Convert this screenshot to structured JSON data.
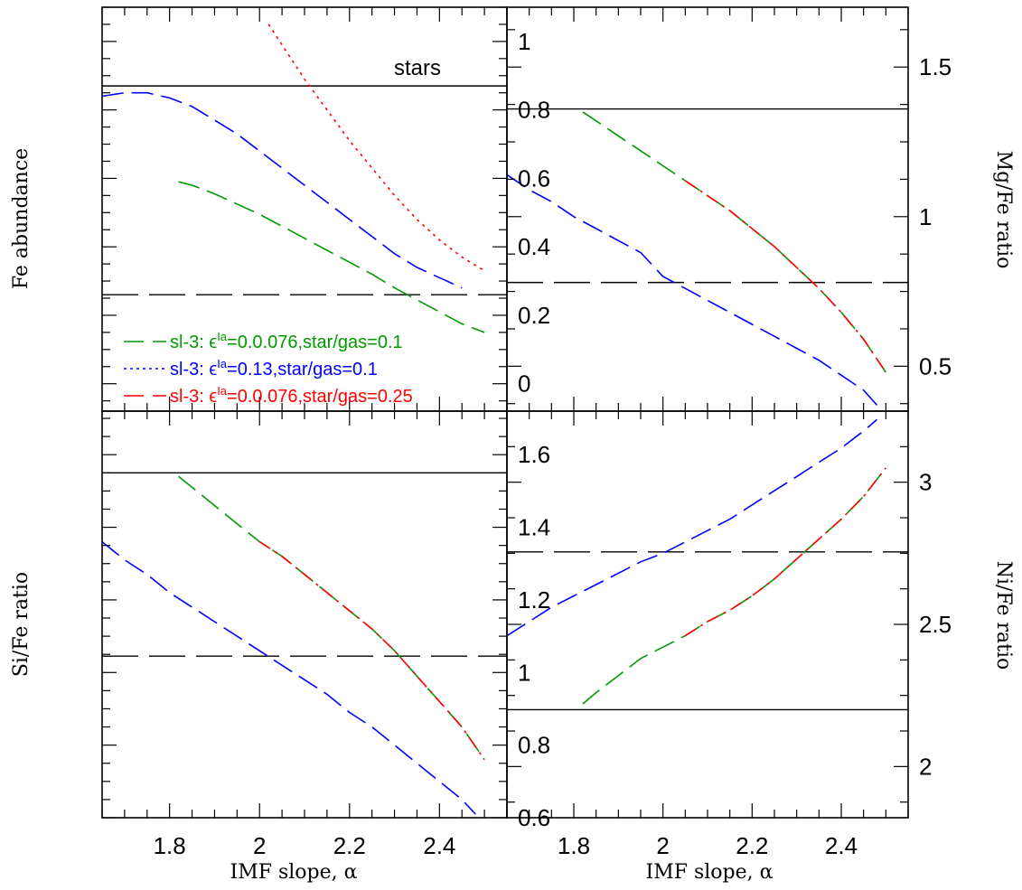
{
  "chart_data": {
    "type": "line",
    "x_tick_labels": [
      "1.8",
      "2",
      "2.2",
      "2.4"
    ],
    "xlabel": "IMF slope, α",
    "xlim": [
      1.65,
      2.55
    ],
    "colors": {
      "green": "#009900",
      "blue": "#0000ff",
      "red": "#ff0000",
      "black": "#000000"
    },
    "legend": [
      {
        "style": "green-dash",
        "text": "sl-3: ϵ",
        "sup": "Ia",
        "rest": "=0.0.076,star/gas=0.1"
      },
      {
        "style": "blue-dot",
        "text": "sl-3: ϵ",
        "sup": "Ia",
        "rest": "=0.13,star/gas=0.1"
      },
      {
        "style": "red-dash",
        "text": "sl-3: ϵ",
        "sup": "Ia",
        "rest": "=0.0.076,star/gas=0.25"
      }
    ],
    "panels": [
      {
        "id": "fe",
        "ylabel": "Fe abundance",
        "ylim": [
          -0.08,
          1.1
        ],
        "yticks": [
          0,
          0.2,
          0.4,
          0.6,
          0.8,
          1
        ],
        "ytick_labels": [
          "0",
          "0.2",
          "0.4",
          "0.6",
          "0.8",
          "1"
        ],
        "annotation": "stars",
        "hlines": [
          {
            "y": 0.87,
            "style": "solid"
          },
          {
            "y": 0.26,
            "style": "longdash"
          }
        ],
        "series": [
          {
            "color": "blue",
            "style": "dash",
            "points": [
              [
                1.65,
                0.84
              ],
              [
                1.7,
                0.85
              ],
              [
                1.75,
                0.85
              ],
              [
                1.8,
                0.835
              ],
              [
                1.85,
                0.81
              ],
              [
                1.9,
                0.77
              ],
              [
                1.95,
                0.73
              ],
              [
                2.0,
                0.68
              ],
              [
                2.05,
                0.63
              ],
              [
                2.1,
                0.58
              ],
              [
                2.15,
                0.53
              ],
              [
                2.2,
                0.48
              ],
              [
                2.25,
                0.43
              ],
              [
                2.3,
                0.38
              ],
              [
                2.35,
                0.34
              ],
              [
                2.4,
                0.31
              ],
              [
                2.45,
                0.28
              ]
            ]
          },
          {
            "color": "green",
            "style": "dash",
            "points": [
              [
                1.82,
                0.59
              ],
              [
                1.85,
                0.58
              ],
              [
                1.9,
                0.555
              ],
              [
                1.95,
                0.525
              ],
              [
                2.0,
                0.495
              ],
              [
                2.05,
                0.46
              ],
              [
                2.1,
                0.425
              ],
              [
                2.15,
                0.39
              ],
              [
                2.2,
                0.355
              ],
              [
                2.25,
                0.32
              ],
              [
                2.3,
                0.28
              ],
              [
                2.35,
                0.245
              ],
              [
                2.4,
                0.21
              ],
              [
                2.45,
                0.175
              ],
              [
                2.5,
                0.15
              ]
            ]
          },
          {
            "color": "red",
            "style": "dot",
            "points": [
              [
                2.02,
                1.05
              ],
              [
                2.05,
                0.99
              ],
              [
                2.1,
                0.89
              ],
              [
                2.15,
                0.8
              ],
              [
                2.2,
                0.71
              ],
              [
                2.25,
                0.63
              ],
              [
                2.3,
                0.55
              ],
              [
                2.35,
                0.48
              ],
              [
                2.4,
                0.42
              ],
              [
                2.45,
                0.37
              ],
              [
                2.5,
                0.33
              ]
            ]
          }
        ]
      },
      {
        "id": "mg",
        "ylabel": "Mg/Fe ratio",
        "ylim": [
          0.35,
          1.7
        ],
        "yticks": [
          0.5,
          1,
          1.5
        ],
        "ytick_labels": [
          "0.5",
          "1",
          "1.5"
        ],
        "hlines": [
          {
            "y": 1.36,
            "style": "solid"
          },
          {
            "y": 0.78,
            "style": "longdash"
          }
        ],
        "series": [
          {
            "color": "blue",
            "style": "dash",
            "points": [
              [
                1.65,
                1.14
              ],
              [
                1.7,
                1.09
              ],
              [
                1.75,
                1.05
              ],
              [
                1.8,
                1.0
              ],
              [
                1.85,
                0.96
              ],
              [
                1.9,
                0.92
              ],
              [
                1.95,
                0.88
              ],
              [
                2.0,
                0.8
              ],
              [
                2.05,
                0.76
              ],
              [
                2.1,
                0.72
              ],
              [
                2.15,
                0.68
              ],
              [
                2.2,
                0.64
              ],
              [
                2.25,
                0.6
              ],
              [
                2.3,
                0.56
              ],
              [
                2.35,
                0.52
              ],
              [
                2.4,
                0.47
              ],
              [
                2.45,
                0.42
              ],
              [
                2.48,
                0.37
              ]
            ]
          },
          {
            "color": "green",
            "style": "dash",
            "points": [
              [
                1.82,
                1.35
              ],
              [
                1.85,
                1.32
              ],
              [
                1.9,
                1.27
              ],
              [
                1.95,
                1.22
              ],
              [
                2.0,
                1.17
              ],
              [
                2.05,
                1.12
              ],
              [
                2.1,
                1.07
              ],
              [
                2.15,
                1.02
              ],
              [
                2.2,
                0.96
              ],
              [
                2.25,
                0.9
              ],
              [
                2.3,
                0.83
              ],
              [
                2.35,
                0.76
              ],
              [
                2.4,
                0.68
              ],
              [
                2.45,
                0.59
              ],
              [
                2.5,
                0.48
              ]
            ]
          },
          {
            "color": "red",
            "style": "dash-dot",
            "points": [
              [
                2.05,
                1.12
              ],
              [
                2.1,
                1.07
              ],
              [
                2.15,
                1.02
              ],
              [
                2.2,
                0.96
              ],
              [
                2.25,
                0.9
              ],
              [
                2.3,
                0.83
              ],
              [
                2.35,
                0.76
              ],
              [
                2.4,
                0.68
              ],
              [
                2.45,
                0.59
              ],
              [
                2.5,
                0.48
              ]
            ]
          }
        ]
      },
      {
        "id": "si",
        "ylabel": "Si/Fe ratio",
        "ylim": [
          0.6,
          1.72
        ],
        "yticks": [
          0.6,
          0.8,
          1,
          1.2,
          1.4,
          1.6
        ],
        "ytick_labels": [
          "0.6",
          "0.8",
          "1",
          "1.2",
          "1.4",
          "1.6"
        ],
        "hlines": [
          {
            "y": 1.55,
            "style": "solid"
          },
          {
            "y": 1.045,
            "style": "longdash"
          }
        ],
        "series": [
          {
            "color": "blue",
            "style": "dash",
            "points": [
              [
                1.65,
                1.36
              ],
              [
                1.7,
                1.31
              ],
              [
                1.75,
                1.27
              ],
              [
                1.8,
                1.22
              ],
              [
                1.85,
                1.18
              ],
              [
                1.9,
                1.14
              ],
              [
                1.95,
                1.1
              ],
              [
                2.0,
                1.06
              ],
              [
                2.05,
                1.02
              ],
              [
                2.1,
                0.98
              ],
              [
                2.15,
                0.94
              ],
              [
                2.2,
                0.89
              ],
              [
                2.25,
                0.85
              ],
              [
                2.3,
                0.8
              ],
              [
                2.35,
                0.75
              ],
              [
                2.4,
                0.7
              ],
              [
                2.45,
                0.65
              ],
              [
                2.48,
                0.61
              ]
            ]
          },
          {
            "color": "green",
            "style": "dash",
            "points": [
              [
                1.82,
                1.54
              ],
              [
                1.85,
                1.51
              ],
              [
                1.9,
                1.46
              ],
              [
                1.95,
                1.41
              ],
              [
                2.0,
                1.36
              ],
              [
                2.05,
                1.32
              ],
              [
                2.1,
                1.27
              ],
              [
                2.15,
                1.22
              ],
              [
                2.2,
                1.17
              ],
              [
                2.25,
                1.12
              ],
              [
                2.3,
                1.06
              ],
              [
                2.35,
                0.99
              ],
              [
                2.4,
                0.92
              ],
              [
                2.45,
                0.85
              ],
              [
                2.5,
                0.76
              ]
            ]
          },
          {
            "color": "red",
            "style": "dash-dot",
            "points": [
              [
                2.0,
                1.36
              ],
              [
                2.05,
                1.32
              ],
              [
                2.1,
                1.27
              ],
              [
                2.15,
                1.22
              ],
              [
                2.2,
                1.17
              ],
              [
                2.25,
                1.12
              ],
              [
                2.3,
                1.06
              ],
              [
                2.35,
                0.99
              ],
              [
                2.4,
                0.92
              ],
              [
                2.45,
                0.85
              ],
              [
                2.5,
                0.76
              ]
            ]
          }
        ]
      },
      {
        "id": "ni",
        "ylabel": "Ni/Fe ratio",
        "ylim": [
          1.82,
          3.25
        ],
        "yticks": [
          2,
          2.5,
          3
        ],
        "ytick_labels": [
          "2",
          "2.5",
          "3"
        ],
        "hlines": [
          {
            "y": 2.755,
            "style": "longdash"
          },
          {
            "y": 2.2,
            "style": "solid"
          }
        ],
        "series": [
          {
            "color": "blue",
            "style": "dash",
            "points": [
              [
                1.65,
                2.46
              ],
              [
                1.7,
                2.51
              ],
              [
                1.75,
                2.56
              ],
              [
                1.8,
                2.6
              ],
              [
                1.85,
                2.64
              ],
              [
                1.9,
                2.68
              ],
              [
                1.95,
                2.72
              ],
              [
                2.0,
                2.75
              ],
              [
                2.05,
                2.79
              ],
              [
                2.1,
                2.83
              ],
              [
                2.15,
                2.87
              ],
              [
                2.2,
                2.92
              ],
              [
                2.25,
                2.97
              ],
              [
                2.3,
                3.02
              ],
              [
                2.35,
                3.07
              ],
              [
                2.4,
                3.12
              ],
              [
                2.45,
                3.18
              ],
              [
                2.48,
                3.22
              ]
            ]
          },
          {
            "color": "green",
            "style": "dash",
            "points": [
              [
                1.82,
                2.22
              ],
              [
                1.85,
                2.26
              ],
              [
                1.9,
                2.32
              ],
              [
                1.95,
                2.38
              ],
              [
                2.0,
                2.42
              ],
              [
                2.05,
                2.46
              ],
              [
                2.1,
                2.51
              ],
              [
                2.15,
                2.55
              ],
              [
                2.2,
                2.6
              ],
              [
                2.25,
                2.66
              ],
              [
                2.3,
                2.73
              ],
              [
                2.35,
                2.8
              ],
              [
                2.4,
                2.87
              ],
              [
                2.45,
                2.95
              ],
              [
                2.5,
                3.05
              ]
            ]
          },
          {
            "color": "red",
            "style": "dash-dot",
            "points": [
              [
                2.05,
                2.46
              ],
              [
                2.1,
                2.51
              ],
              [
                2.15,
                2.55
              ],
              [
                2.2,
                2.6
              ],
              [
                2.25,
                2.66
              ],
              [
                2.3,
                2.73
              ],
              [
                2.35,
                2.8
              ],
              [
                2.4,
                2.87
              ],
              [
                2.45,
                2.95
              ],
              [
                2.5,
                3.05
              ]
            ]
          }
        ]
      }
    ]
  }
}
